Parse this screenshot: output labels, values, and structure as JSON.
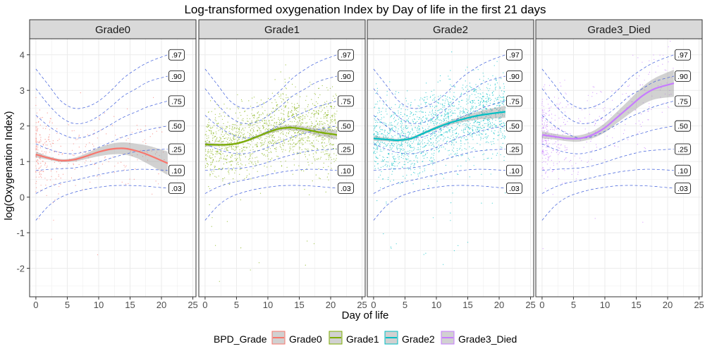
{
  "chart_data": {
    "type": "scatter",
    "title": "Log-transformed oxygenation Index by Day of life in the first 21 days",
    "xlabel": "Day of life",
    "ylabel": "log(Oxygenation Index)",
    "xlim": [
      -1,
      25.5
    ],
    "ylim": [
      -2.8,
      4.45
    ],
    "x_ticks": [
      0,
      5,
      10,
      15,
      20,
      25
    ],
    "y_ticks": [
      -2,
      -1,
      0,
      1,
      2,
      3,
      4
    ],
    "x_tick_labels": [
      "0",
      "5",
      "10",
      "15",
      "20",
      "25"
    ],
    "y_tick_labels": [
      "-2",
      "-1",
      "0",
      "1",
      "2",
      "3",
      "4"
    ],
    "grid": true,
    "legend": {
      "title": "BPD_Grade",
      "position": "bottom",
      "entries": [
        "Grade0",
        "Grade1",
        "Grade2",
        "Grade3_Died"
      ]
    },
    "centile_labels": [
      ".97",
      ".90",
      ".75",
      ".50",
      ".25",
      ".10",
      ".03"
    ],
    "panels": [
      {
        "name": "Grade0",
        "color": "#F8766D",
        "smooth_x": [
          0,
          2,
          4,
          6,
          8,
          10,
          12,
          14,
          16,
          18,
          21
        ],
        "smooth_y": [
          1.2,
          1.1,
          1.03,
          1.05,
          1.15,
          1.27,
          1.35,
          1.37,
          1.3,
          1.18,
          0.95
        ],
        "se_halfwidth": [
          0.08,
          0.05,
          0.04,
          0.05,
          0.08,
          0.12,
          0.15,
          0.17,
          0.2,
          0.26,
          0.33
        ],
        "centiles": {
          ".97": [
            3.6,
            3.15,
            2.7,
            2.5,
            2.53,
            2.7,
            3.0,
            3.35,
            3.6,
            3.8,
            4.0
          ],
          ".90": [
            3.05,
            2.6,
            2.25,
            2.07,
            2.1,
            2.28,
            2.55,
            2.85,
            3.05,
            3.25,
            3.4
          ],
          ".75": [
            2.3,
            2.0,
            1.78,
            1.66,
            1.7,
            1.85,
            2.05,
            2.25,
            2.4,
            2.55,
            2.7
          ],
          ".50": [
            1.5,
            1.35,
            1.25,
            1.22,
            1.28,
            1.4,
            1.55,
            1.7,
            1.8,
            1.9,
            2.0
          ],
          ".25": [
            0.75,
            0.78,
            0.8,
            0.82,
            0.88,
            0.98,
            1.1,
            1.2,
            1.28,
            1.32,
            1.35
          ],
          ".10": [
            0.1,
            0.28,
            0.4,
            0.47,
            0.55,
            0.63,
            0.7,
            0.75,
            0.78,
            0.78,
            0.75
          ],
          ".03": [
            -0.65,
            -0.25,
            0.0,
            0.13,
            0.22,
            0.28,
            0.32,
            0.33,
            0.32,
            0.3,
            0.25
          ]
        },
        "points": {
          "n": 320,
          "x_range": [
            0,
            21
          ],
          "x_concentration": "early",
          "center": [
            1.3,
            1.15,
            1.05,
            1.07,
            1.18,
            1.28,
            1.36,
            1.38,
            1.32,
            1.2,
            1.0
          ],
          "spread": 0.55
        }
      },
      {
        "name": "Grade1",
        "color": "#7CAE00",
        "smooth_x": [
          0,
          2,
          4,
          6,
          8,
          10,
          12,
          14,
          16,
          18,
          21
        ],
        "smooth_y": [
          1.48,
          1.47,
          1.48,
          1.55,
          1.68,
          1.82,
          1.93,
          1.95,
          1.9,
          1.83,
          1.75
        ],
        "se_halfwidth": [
          0.06,
          0.04,
          0.03,
          0.03,
          0.04,
          0.05,
          0.06,
          0.07,
          0.08,
          0.1,
          0.13
        ],
        "centiles": {
          ".97": [
            3.6,
            3.15,
            2.7,
            2.5,
            2.53,
            2.7,
            3.0,
            3.35,
            3.6,
            3.8,
            4.0
          ],
          ".90": [
            3.05,
            2.6,
            2.25,
            2.07,
            2.1,
            2.28,
            2.55,
            2.85,
            3.05,
            3.25,
            3.4
          ],
          ".75": [
            2.3,
            2.0,
            1.78,
            1.66,
            1.7,
            1.85,
            2.05,
            2.25,
            2.4,
            2.55,
            2.7
          ],
          ".50": [
            1.5,
            1.35,
            1.25,
            1.22,
            1.28,
            1.4,
            1.55,
            1.7,
            1.8,
            1.9,
            2.0
          ],
          ".25": [
            0.75,
            0.78,
            0.8,
            0.82,
            0.88,
            0.98,
            1.1,
            1.2,
            1.28,
            1.32,
            1.35
          ],
          ".10": [
            0.1,
            0.28,
            0.4,
            0.47,
            0.55,
            0.63,
            0.7,
            0.75,
            0.78,
            0.78,
            0.75
          ],
          ".03": [
            -0.65,
            -0.25,
            0.0,
            0.13,
            0.22,
            0.28,
            0.32,
            0.33,
            0.32,
            0.3,
            0.25
          ]
        },
        "points": {
          "n": 1500,
          "x_range": [
            0,
            21
          ],
          "x_concentration": "uniform",
          "center": [
            1.45,
            1.45,
            1.48,
            1.55,
            1.7,
            1.85,
            1.95,
            1.97,
            1.92,
            1.85,
            1.78
          ],
          "spread": 0.5
        }
      },
      {
        "name": "Grade2",
        "color": "#00BFC4",
        "smooth_x": [
          0,
          2,
          4,
          6,
          8,
          10,
          12,
          14,
          16,
          18,
          21
        ],
        "smooth_y": [
          1.65,
          1.62,
          1.6,
          1.65,
          1.8,
          1.95,
          2.08,
          2.18,
          2.27,
          2.33,
          2.4
        ],
        "se_halfwidth": [
          0.07,
          0.05,
          0.04,
          0.04,
          0.04,
          0.05,
          0.06,
          0.08,
          0.1,
          0.13,
          0.17
        ],
        "centiles": {
          ".97": [
            3.6,
            3.15,
            2.7,
            2.5,
            2.53,
            2.7,
            3.0,
            3.35,
            3.6,
            3.8,
            4.0
          ],
          ".90": [
            3.05,
            2.6,
            2.25,
            2.07,
            2.1,
            2.28,
            2.55,
            2.85,
            3.05,
            3.25,
            3.4
          ],
          ".75": [
            2.3,
            2.0,
            1.78,
            1.66,
            1.7,
            1.85,
            2.05,
            2.25,
            2.4,
            2.55,
            2.7
          ],
          ".50": [
            1.5,
            1.35,
            1.25,
            1.22,
            1.28,
            1.4,
            1.55,
            1.7,
            1.8,
            1.9,
            2.0
          ],
          ".25": [
            0.75,
            0.78,
            0.8,
            0.82,
            0.88,
            0.98,
            1.1,
            1.2,
            1.28,
            1.32,
            1.35
          ],
          ".10": [
            0.1,
            0.28,
            0.4,
            0.47,
            0.55,
            0.63,
            0.7,
            0.75,
            0.78,
            0.78,
            0.75
          ],
          ".03": [
            -0.65,
            -0.25,
            0.0,
            0.13,
            0.22,
            0.28,
            0.32,
            0.33,
            0.32,
            0.3,
            0.25
          ]
        },
        "points": {
          "n": 1700,
          "x_range": [
            0,
            21
          ],
          "x_concentration": "uniform",
          "center": [
            1.7,
            1.65,
            1.62,
            1.68,
            1.82,
            1.97,
            2.1,
            2.2,
            2.28,
            2.33,
            2.4
          ],
          "spread": 0.55
        }
      },
      {
        "name": "Grade3_Died",
        "color": "#C77CFF",
        "smooth_x": [
          0,
          2,
          4,
          6,
          8,
          10,
          12,
          14,
          16,
          18,
          21
        ],
        "smooth_y": [
          1.75,
          1.7,
          1.65,
          1.65,
          1.75,
          1.95,
          2.25,
          2.55,
          2.85,
          3.05,
          3.2
        ],
        "se_halfwidth": [
          0.1,
          0.08,
          0.08,
          0.09,
          0.1,
          0.13,
          0.16,
          0.2,
          0.25,
          0.3,
          0.38
        ],
        "centiles": {
          ".97": [
            3.6,
            3.15,
            2.7,
            2.5,
            2.53,
            2.7,
            3.0,
            3.35,
            3.6,
            3.8,
            4.0
          ],
          ".90": [
            3.05,
            2.6,
            2.25,
            2.07,
            2.1,
            2.28,
            2.55,
            2.85,
            3.05,
            3.25,
            3.4
          ],
          ".75": [
            2.3,
            2.0,
            1.78,
            1.66,
            1.7,
            1.85,
            2.05,
            2.25,
            2.4,
            2.55,
            2.7
          ],
          ".50": [
            1.5,
            1.35,
            1.25,
            1.22,
            1.28,
            1.4,
            1.55,
            1.7,
            1.8,
            1.9,
            2.0
          ],
          ".25": [
            0.75,
            0.78,
            0.8,
            0.82,
            0.88,
            0.98,
            1.1,
            1.2,
            1.28,
            1.32,
            1.35
          ],
          ".10": [
            0.1,
            0.28,
            0.4,
            0.47,
            0.55,
            0.63,
            0.7,
            0.75,
            0.78,
            0.78,
            0.75
          ],
          ".03": [
            -0.65,
            -0.25,
            0.0,
            0.13,
            0.22,
            0.28,
            0.32,
            0.33,
            0.32,
            0.3,
            0.25
          ]
        },
        "points": {
          "n": 420,
          "x_range": [
            0,
            21
          ],
          "x_concentration": "early",
          "center": [
            1.75,
            1.7,
            1.68,
            1.7,
            1.8,
            2.0,
            2.3,
            2.6,
            2.85,
            3.05,
            3.2
          ],
          "spread": 0.6
        }
      }
    ],
    "centile_line_color": "#3B5BDB",
    "strip_color": "#D9D9D9",
    "grid_color": "#EBEBEB"
  }
}
